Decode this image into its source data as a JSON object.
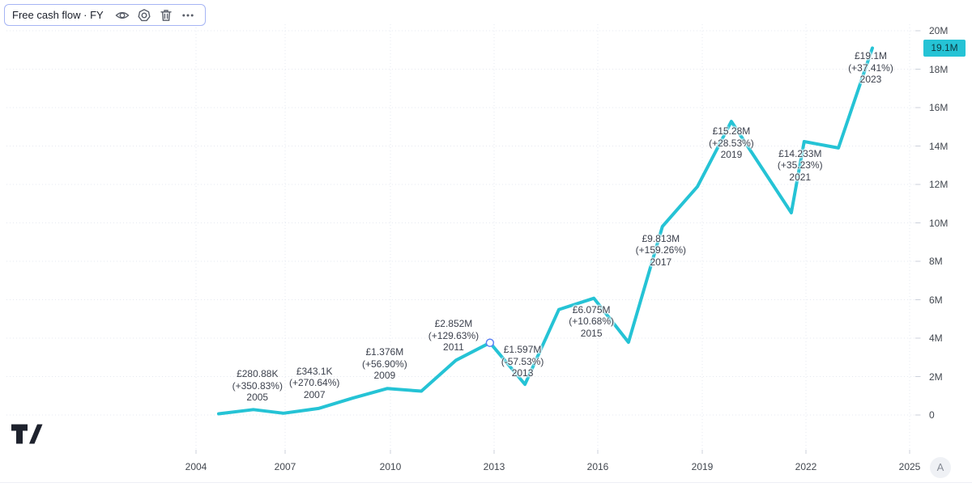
{
  "legend": {
    "title": "Free cash flow · FY",
    "buttons": [
      {
        "label": "hide",
        "icon": "eye-icon"
      },
      {
        "label": "settings",
        "icon": "gear-icon"
      },
      {
        "label": "delete",
        "icon": "trash-icon"
      },
      {
        "label": "more",
        "icon": "more-dots-icon"
      }
    ]
  },
  "colors": {
    "line": "#25c3d5",
    "badge_bg": "#25c3d5",
    "badge_text": "#0d3840",
    "label_text": "#3c414d",
    "axis_text": "#42474f",
    "grid": "#e5e8f0",
    "tick": "#ccd1db",
    "legend_border": "#a6b5f4",
    "marker_ring": "#5b80f5"
  },
  "y_axis": {
    "labels": [
      "20M",
      "18M",
      "16M",
      "14M",
      "12M",
      "10M",
      "8M",
      "6M",
      "4M",
      "2M",
      "0"
    ],
    "values": [
      20,
      18,
      16,
      14,
      12,
      10,
      8,
      6,
      4,
      2,
      0
    ],
    "last_value_badge": "19.1M",
    "last_value": 19.1
  },
  "x_axis": {
    "labels": [
      "2004",
      "2007",
      "2010",
      "2013",
      "2016",
      "2019",
      "2022",
      "2025"
    ],
    "years": [
      2004,
      2007,
      2010,
      2013,
      2016,
      2019,
      2022,
      2025
    ]
  },
  "chart_data": {
    "type": "line",
    "title": "Free cash flow · FY",
    "currency": "GBP",
    "unit": "millions",
    "ylim": [
      0,
      20
    ],
    "xlim_years": [
      2004,
      2025
    ],
    "grid": true,
    "series": [
      {
        "name": "Free cash flow",
        "color": "#25c3d5",
        "points": [
          {
            "fy": 2004,
            "date": 2005.05,
            "value_m": 0.062
          },
          {
            "fy": 2005,
            "date": 2006.05,
            "value_m": 0.281
          },
          {
            "fy": 2006,
            "date": 2006.92,
            "value_m": 0.093
          },
          {
            "fy": 2007,
            "date": 2007.93,
            "value_m": 0.343
          },
          {
            "fy": 2008,
            "date": 2008.91,
            "value_m": 0.877
          },
          {
            "fy": 2009,
            "date": 2009.91,
            "value_m": 1.376
          },
          {
            "fy": 2010,
            "date": 2010.9,
            "value_m": 1.242
          },
          {
            "fy": 2011,
            "date": 2011.9,
            "value_m": 2.852
          },
          {
            "fy": 2012,
            "date": 2012.88,
            "value_m": 3.76
          },
          {
            "fy": 2013,
            "date": 2013.89,
            "value_m": 1.597
          },
          {
            "fy": 2014,
            "date": 2014.87,
            "value_m": 5.489
          },
          {
            "fy": 2015,
            "date": 2015.88,
            "value_m": 6.075
          },
          {
            "fy": 2016,
            "date": 2016.88,
            "value_m": 3.785
          },
          {
            "fy": 2017,
            "date": 2017.86,
            "value_m": 9.813
          },
          {
            "fy": 2018,
            "date": 2018.87,
            "value_m": 11.888
          },
          {
            "fy": 2019,
            "date": 2019.85,
            "value_m": 15.28
          },
          {
            "fy": 2020,
            "date": 2021.58,
            "value_m": 10.525
          },
          {
            "fy": 2021,
            "date": 2021.95,
            "value_m": 14.233
          },
          {
            "fy": 2022,
            "date": 2022.94,
            "value_m": 13.9
          },
          {
            "fy": 2023,
            "date": 2023.92,
            "value_m": 19.1
          }
        ]
      }
    ],
    "annotations": [
      {
        "fy": 2005,
        "value": "£280.88K",
        "change": "(+350.83%)",
        "year": "2005"
      },
      {
        "fy": 2007,
        "value": "£343.1K",
        "change": "(+270.64%)",
        "year": "2007"
      },
      {
        "fy": 2009,
        "value": "£1.376M",
        "change": "(+56.90%)",
        "year": "2009"
      },
      {
        "fy": 2011,
        "value": "£2.852M",
        "change": "(+129.63%)",
        "year": "2011"
      },
      {
        "fy": 2013,
        "value": "£1.597M",
        "change": "(-57.53%)",
        "year": "2013"
      },
      {
        "fy": 2015,
        "value": "£6.075M",
        "change": "(+10.68%)",
        "year": "2015"
      },
      {
        "fy": 2017,
        "value": "£9.813M",
        "change": "(+159.26%)",
        "year": "2017"
      },
      {
        "fy": 2019,
        "value": "£15.28M",
        "change": "(+28.53%)",
        "year": "2019"
      },
      {
        "fy": 2021,
        "value": "£14.233M",
        "change": "(+35.23%)",
        "year": "2021"
      },
      {
        "fy": 2023,
        "value": "£19.1M",
        "change": "(+37.41%)",
        "year": "2023"
      }
    ],
    "selected_point_fy": 2012
  },
  "footer": {
    "logo": "tradingview-logo",
    "account_button": "A"
  }
}
